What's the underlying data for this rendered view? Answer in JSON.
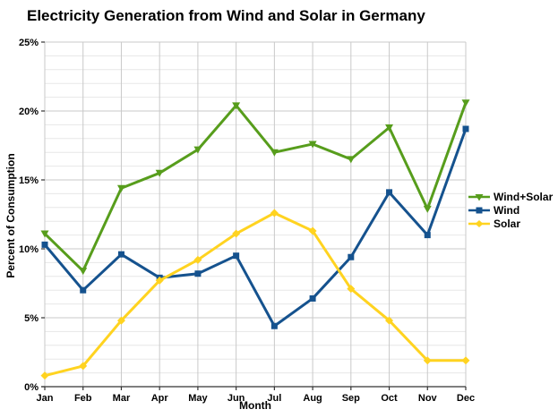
{
  "title": "Electricity Generation from Wind and Solar in Germany",
  "chart_data": {
    "type": "line",
    "title": "Electricity Generation from Wind and Solar in Germany",
    "xlabel": "Month",
    "ylabel": "Percent of Consumption",
    "categories": [
      "Jan",
      "Feb",
      "Mar",
      "Apr",
      "May",
      "Jun",
      "Jul",
      "Aug",
      "Sep",
      "Oct",
      "Nov",
      "Dec"
    ],
    "series": [
      {
        "name": "Wind+Solar",
        "color": "#579D1C",
        "marker": "arrow-down",
        "values": [
          11.1,
          8.4,
          14.4,
          15.5,
          17.2,
          20.4,
          17.0,
          17.6,
          16.5,
          18.8,
          12.9,
          20.6
        ]
      },
      {
        "name": "Wind",
        "color": "#15528E",
        "marker": "square",
        "values": [
          10.3,
          7.0,
          9.6,
          7.9,
          8.2,
          9.5,
          4.4,
          6.4,
          9.4,
          14.1,
          11.0,
          18.7
        ]
      },
      {
        "name": "Solar",
        "color": "#FFD320",
        "marker": "diamond",
        "values": [
          0.8,
          1.5,
          4.8,
          7.7,
          9.2,
          11.1,
          12.6,
          11.3,
          7.1,
          4.8,
          1.9,
          1.9
        ]
      }
    ],
    "ylim": [
      0,
      25
    ],
    "ytick_major": 5,
    "ytick_minor": 1,
    "ytick_labels": [
      "0%",
      "5%",
      "10%",
      "15%",
      "20%",
      "25%"
    ],
    "grid": "minor-horizontal, major-horizontal, vertical-per-month",
    "legend_position": "right"
  },
  "colors": {
    "background": "#ffffff",
    "minor_grid": "#e7e7e7",
    "major_grid": "#c9c9c9",
    "axis": "#333333",
    "text": "#000000"
  }
}
